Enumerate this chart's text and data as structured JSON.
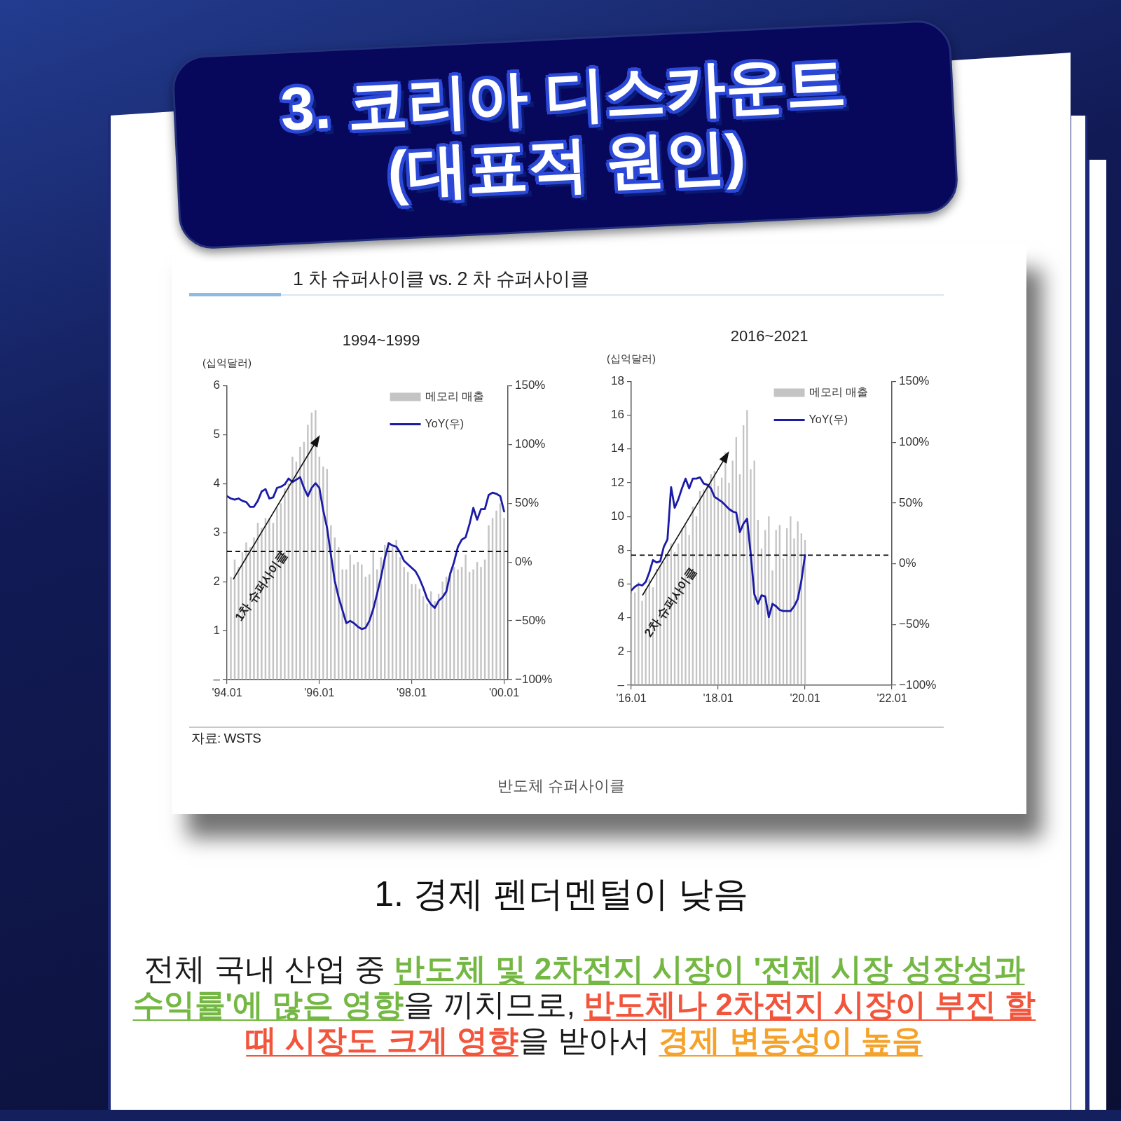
{
  "chart_data": [
    {
      "type": "bar",
      "title": "1994~1999",
      "ylabel": "(십억달러)",
      "x": [
        "1994-01",
        "1994-02",
        "1994-03",
        "1994-04",
        "1994-05",
        "1994-06",
        "1994-07",
        "1994-08",
        "1994-09",
        "1994-10",
        "1994-11",
        "1994-12",
        "1995-01",
        "1995-02",
        "1995-03",
        "1995-04",
        "1995-05",
        "1995-06",
        "1995-07",
        "1995-08",
        "1995-09",
        "1995-10",
        "1995-11",
        "1995-12",
        "1996-01",
        "1996-02",
        "1996-03",
        "1996-04",
        "1996-05",
        "1996-06",
        "1996-07",
        "1996-08",
        "1996-09",
        "1996-10",
        "1996-11",
        "1996-12",
        "1997-01",
        "1997-02",
        "1997-03",
        "1997-04",
        "1997-05",
        "1997-06",
        "1997-07",
        "1997-08",
        "1997-09",
        "1997-10",
        "1997-11",
        "1997-12",
        "1998-01",
        "1998-02",
        "1998-03",
        "1998-04",
        "1998-05",
        "1998-06",
        "1998-07",
        "1998-08",
        "1998-09",
        "1998-10",
        "1998-11",
        "1998-12",
        "1999-01",
        "1999-02",
        "1999-03",
        "1999-04",
        "1999-05",
        "1999-06",
        "1999-07",
        "1999-08",
        "1999-09",
        "1999-10",
        "1999-11",
        "1999-12",
        "2000-01"
      ],
      "xlim": [
        "1994-01",
        "2000-02"
      ],
      "xticks": [
        {
          "value": "1994-01",
          "label": "'94.01"
        },
        {
          "value": "1996-01",
          "label": "'96.01"
        },
        {
          "value": "1998-01",
          "label": "'98.01"
        },
        {
          "value": "2000-01",
          "label": "'00.01"
        }
      ],
      "ylim": [
        0,
        6
      ],
      "yticks": [
        {
          "value": 0,
          "label": "–"
        },
        1,
        2,
        3,
        4,
        5,
        6
      ],
      "y2lim": [
        -100,
        150
      ],
      "y2ticks": [
        {
          "value": -100,
          "label": "−100%"
        },
        {
          "value": -50,
          "label": "−50%"
        },
        {
          "value": 0,
          "label": "0%"
        },
        {
          "value": 50,
          "label": "50%"
        },
        {
          "value": 100,
          "label": "100%"
        },
        {
          "value": 150,
          "label": "150%"
        }
      ],
      "series": [
        {
          "name": "메모리 매출",
          "color": "#c4c4c4",
          "values": [
            2.0,
            2.1,
            2.45,
            2.3,
            2.6,
            2.8,
            2.7,
            2.9,
            3.2,
            3.1,
            3.3,
            3.3,
            3.2,
            3.5,
            3.6,
            3.9,
            4.0,
            4.55,
            4.45,
            4.75,
            4.85,
            5.2,
            5.45,
            5.5,
            4.55,
            4.35,
            4.3,
            3.15,
            2.9,
            2.7,
            2.25,
            2.25,
            2.55,
            2.35,
            2.4,
            2.35,
            2.1,
            2.15,
            2.6,
            2.25,
            2.5,
            2.75,
            2.8,
            2.7,
            2.85,
            2.5,
            2.3,
            2.2,
            1.95,
            1.95,
            1.85,
            1.7,
            1.55,
            1.8,
            1.6,
            1.75,
            2.0,
            2.1,
            2.2,
            2.3,
            2.25,
            2.3,
            2.55,
            2.2,
            2.25,
            2.4,
            2.3,
            2.45,
            3.15,
            3.3,
            3.45,
            3.6,
            3.3
          ]
        },
        {
          "name": "YoY(우)",
          "type": "line",
          "axis": "y2",
          "color": "#1b1ba8",
          "values": [
            56,
            54,
            53,
            54,
            52,
            51,
            47,
            47,
            52,
            60,
            62,
            54,
            55,
            63,
            64,
            66,
            71,
            68,
            70,
            72,
            63,
            56,
            63,
            67,
            63,
            44,
            29,
            6,
            -16,
            -30,
            -41,
            -52,
            -50,
            -52,
            -55,
            -57,
            -56,
            -50,
            -40,
            -27,
            -13,
            3,
            16,
            14,
            13,
            8,
            1,
            -2,
            -5,
            -8,
            -14,
            -22,
            -31,
            -36,
            -39,
            -33,
            -30,
            -25,
            -10,
            0,
            13,
            19,
            21,
            32,
            46,
            36,
            45,
            45,
            57,
            59,
            58,
            56,
            43
          ]
        }
      ],
      "ref_lines": [
        {
          "axis": "y2",
          "value": 9,
          "color": "#000000",
          "line_style": "dashed"
        }
      ],
      "legend": "top right",
      "annotations": [
        "3. 코리아 디스카운트 (대표적 원인)",
        "1 차 슈퍼사이클 vs. 2 차 슈퍼사이클",
        {
          "text": "1차 슈퍼사이클",
          "x": "1994-10",
          "y": 1.9
        }
      ]
    },
    {
      "type": "bar",
      "title": "2016~2021",
      "ylabel": "(십억달러)",
      "x": [
        "2016-01",
        "2016-02",
        "2016-03",
        "2016-04",
        "2016-05",
        "2016-06",
        "2016-07",
        "2016-08",
        "2016-09",
        "2016-10",
        "2016-11",
        "2016-12",
        "2017-01",
        "2017-02",
        "2017-03",
        "2017-04",
        "2017-05",
        "2017-06",
        "2017-07",
        "2017-08",
        "2017-09",
        "2017-10",
        "2017-11",
        "2017-12",
        "2018-01",
        "2018-02",
        "2018-03",
        "2018-04",
        "2018-05",
        "2018-06",
        "2018-07",
        "2018-08",
        "2018-09",
        "2018-10",
        "2018-11",
        "2018-12",
        "2019-01",
        "2019-02",
        "2019-03",
        "2019-04",
        "2019-05",
        "2019-06",
        "2019-07",
        "2019-08",
        "2019-09",
        "2019-10",
        "2019-11",
        "2019-12",
        "2020-01"
      ],
      "xlim": [
        "2016-01",
        "2022-01"
      ],
      "xticks": [
        {
          "value": "2016-01",
          "label": "'16.01"
        },
        {
          "value": "2018-01",
          "label": "'18.01"
        },
        {
          "value": "2020-01",
          "label": "'20.01"
        },
        {
          "value": "2022-01",
          "label": "'22.01"
        }
      ],
      "ylim": [
        0,
        18
      ],
      "yticks": [
        {
          "value": 0,
          "label": "–"
        },
        2,
        4,
        6,
        8,
        10,
        12,
        14,
        16,
        18
      ],
      "y2lim": [
        -100,
        150
      ],
      "y2ticks": [
        {
          "value": -100,
          "label": "−100%"
        },
        {
          "value": -50,
          "label": "−50%"
        },
        {
          "value": 0,
          "label": "0%"
        },
        {
          "value": 50,
          "label": "50%"
        },
        {
          "value": 100,
          "label": "100%"
        },
        {
          "value": 150,
          "label": "150%"
        }
      ],
      "series": [
        {
          "name": "메모리 매출",
          "color": "#c4c4c4",
          "values": [
            5.4,
            5.5,
            6.1,
            5.0,
            5.7,
            6.3,
            5.8,
            6.9,
            7.1,
            7.3,
            7.7,
            8.4,
            7.9,
            8.4,
            9.3,
            9.5,
            8.9,
            10.6,
            10.0,
            11.5,
            11.6,
            11.9,
            12.5,
            12.7,
            11.8,
            12.3,
            13.8,
            12.0,
            13.3,
            14.7,
            12.5,
            15.4,
            16.3,
            12.8,
            13.3,
            9.8,
            8.1,
            9.2,
            10.0,
            6.8,
            9.2,
            9.5,
            7.5,
            9.3,
            10.0,
            8.7,
            9.7,
            9.0,
            8.6
          ]
        },
        {
          "name": "YoY(우)",
          "type": "line",
          "axis": "y2",
          "color": "#1b1ba8",
          "values": [
            -22,
            -19,
            -17,
            -18,
            -15,
            -7,
            3,
            1,
            2,
            14,
            20,
            63,
            46,
            53,
            62,
            70,
            62,
            70,
            70,
            71,
            66,
            65,
            62,
            55,
            53,
            51,
            48,
            45,
            43,
            42,
            26,
            33,
            37,
            8,
            -25,
            -33,
            -26,
            -27,
            -44,
            -33,
            -35,
            -38,
            -39,
            -39,
            -39,
            -35,
            -29,
            -14,
            7
          ]
        }
      ],
      "ref_lines": [
        {
          "axis": "y2",
          "value": 7,
          "color": "#000000",
          "line_style": "dashed"
        }
      ],
      "legend": "top right",
      "annotations": [
        {
          "text": "2차 슈퍼사이클",
          "x": "2016-12",
          "y": 4.9
        },
        "자료: WSTS",
        "반도체 슈퍼사이클",
        "1. 경제 펜더멘털이 낮음",
        "전체 국내 산업 중 ",
        "반도체 및 2차전지 시장이 '전체 시장 성장성과 수익률'에 많은 영향",
        "을 끼치므로, ",
        "반도체나 2차전지 시장이 부진 할 때 시장도 크게 영향",
        "을 받아서 ",
        "경제 변동성이 높음"
      ]
    }
  ]
}
